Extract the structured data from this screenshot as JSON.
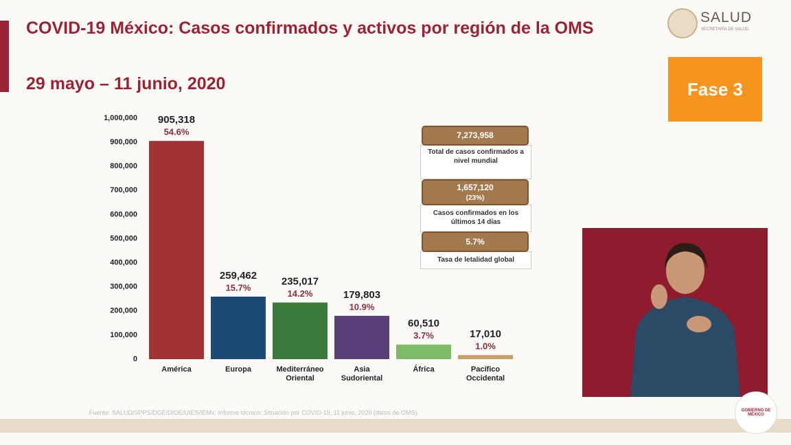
{
  "chart_data": {
    "type": "bar",
    "categories": [
      "América",
      "Europa",
      "Mediterráneo Oriental",
      "Asia Sudoriental",
      "África",
      "Pacífico Occidental"
    ],
    "values": [
      905318,
      259462,
      235017,
      179803,
      60510,
      17010
    ],
    "value_labels": [
      "905,318",
      "259,462",
      "235,017",
      "179,803",
      "60,510",
      "17,010"
    ],
    "percent_labels": [
      "54.6%",
      "15.7%",
      "14.2%",
      "10.9%",
      "3.7%",
      "1.0%"
    ],
    "colors": [
      "#a33236",
      "#1d4a74",
      "#3b7a3a",
      "#5a3f78",
      "#7dbb68",
      "#c9a06a"
    ],
    "ylim": [
      0,
      1000000
    ],
    "yticks": [
      0,
      {
        "value": 100000,
        "label": "100,000"
      },
      {
        "value": 200000,
        "label": "200,000"
      },
      {
        "value": 300000,
        "label": "300,000"
      },
      {
        "value": 400000,
        "label": "400,000"
      },
      {
        "value": 500000,
        "label": "500,000"
      },
      {
        "value": 600000,
        "label": "600,000"
      },
      {
        "value": 700000,
        "label": "700,000"
      },
      {
        "value": 800000,
        "label": "800,000"
      },
      {
        "value": 900000,
        "label": "900,000"
      },
      {
        "value": 1000000,
        "label": "1,000,000"
      }
    ],
    "grid": false
  },
  "header": {
    "title": "COVID-19 México: Casos confirmados y activos por región de la OMS",
    "subtitle": "29 mayo – 11 junio, 2020"
  },
  "logo": {
    "name": "SALUD",
    "subtitle": "SECRETARÍA DE SALUD"
  },
  "phase": "Fase 3",
  "info_boxes": [
    {
      "value": "7,273,958",
      "caption": "Total de casos confirmados a nivel mundial"
    },
    {
      "value": "1,657,120",
      "detail": "(23%)",
      "caption": "Casos confirmados en los últimos 14 días"
    },
    {
      "value": "5.7%",
      "caption": "Tasa de letalidad global"
    }
  ],
  "source": "Fuente: SALUD/SPPS/DGE/DIOE/UIES/IEMx: Informe técnico: Situación por COVID-19, 11 junio, 2020 (datos de OMS).",
  "government": "GOBIERNO DE MÉXICO"
}
